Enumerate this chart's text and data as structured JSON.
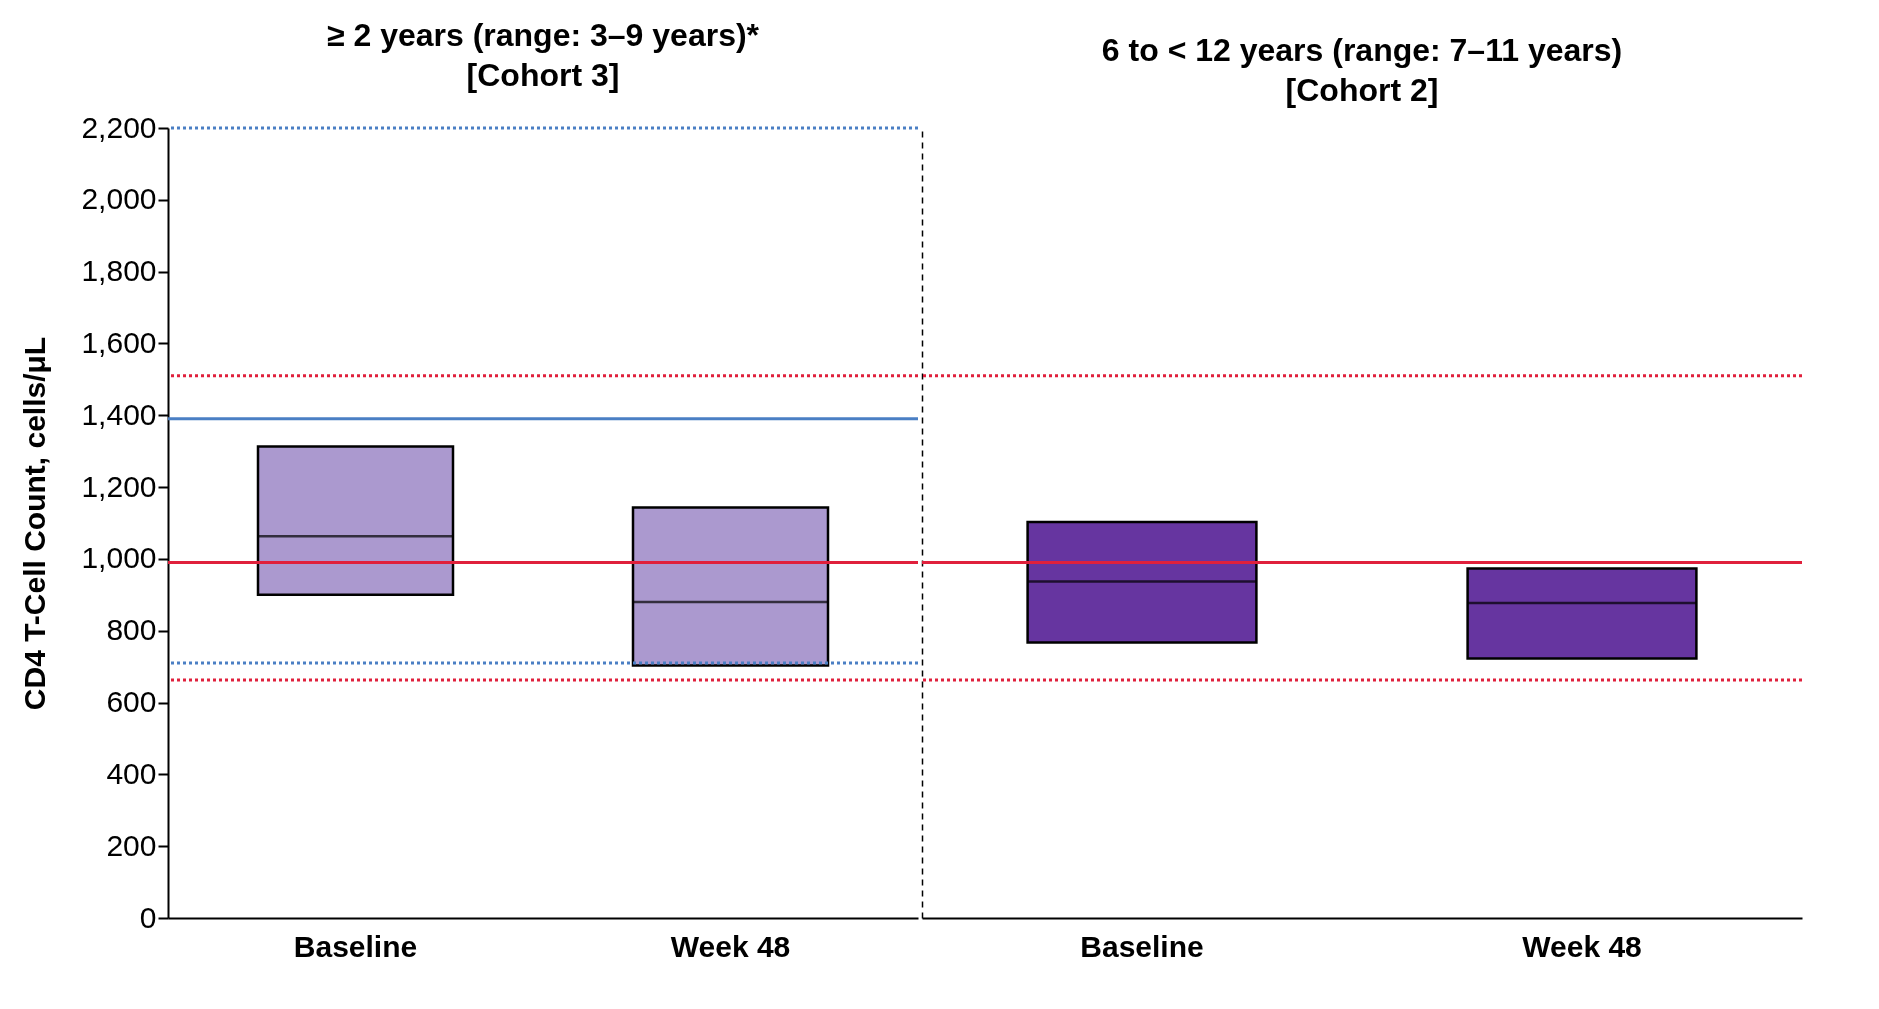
{
  "chart_data": [
    {
      "type": "box",
      "title": "≥ 2 years (range: 3–9 years)*",
      "subtitle": "[Cohort 3]",
      "ylabel": "CD4 T-Cell Count, cells/μL",
      "categories": [
        "Baseline",
        "Week 48"
      ],
      "series": [
        {
          "color": "#ab99cf",
          "boxes": [
            {
              "low": 900,
              "q1": 900,
              "median": 1063,
              "q3": 1313,
              "high": 1313
            },
            {
              "low": 703,
              "q1": 703,
              "median": 880,
              "q3": 1143,
              "high": 1143
            }
          ]
        }
      ],
      "ylim": [
        0,
        2200
      ],
      "yticks": [
        0,
        200,
        400,
        600,
        800,
        {
          "value": 1000,
          "label": "1,000"
        },
        {
          "value": 1200,
          "label": "1,200"
        },
        {
          "value": 1400,
          "label": "1,400"
        },
        {
          "value": 1600,
          "label": "1,600"
        },
        {
          "value": 1800,
          "label": "1,800"
        },
        {
          "value": 2000,
          "label": "2,000"
        },
        {
          "value": 2200,
          "label": "2,200"
        }
      ],
      "ref_lines": [
        {
          "axis": "y",
          "value": 2200,
          "color": "#4a7fc4",
          "line_style": "dotted"
        },
        {
          "axis": "y",
          "value": 1390,
          "color": "#4a7fc4",
          "line_style": "solid"
        },
        {
          "axis": "y",
          "value": 710,
          "color": "#4a7fc4",
          "line_style": "dotted"
        },
        {
          "axis": "y",
          "value": 1510,
          "color": "#e0203c",
          "line_style": "dotted"
        },
        {
          "axis": "y",
          "value": 990,
          "color": "#e0203c",
          "line_style": "solid"
        },
        {
          "axis": "y",
          "value": 663,
          "color": "#e0203c",
          "line_style": "dotted"
        }
      ],
      "grid": false
    },
    {
      "type": "box",
      "title": "6 to < 12 years (range: 7–11 years)",
      "subtitle": "[Cohort 2]",
      "categories": [
        "Baseline",
        "Week 48"
      ],
      "series": [
        {
          "color": "#6635a0",
          "boxes": [
            {
              "low": 767,
              "q1": 767,
              "median": 937,
              "q3": 1103,
              "high": 1103
            },
            {
              "low": 723,
              "q1": 723,
              "median": 877,
              "q3": 973,
              "high": 973
            }
          ]
        }
      ],
      "ylim": [
        0,
        2200
      ],
      "tick_labels": "x",
      "ref_lines": [
        {
          "axis": "y",
          "value": 1510,
          "color": "#e0203c",
          "line_style": "dotted"
        },
        {
          "axis": "y",
          "value": 990,
          "color": "#e0203c",
          "line_style": "solid"
        },
        {
          "axis": "y",
          "value": 663,
          "color": "#e0203c",
          "line_style": "dotted"
        }
      ],
      "grid": false
    }
  ]
}
